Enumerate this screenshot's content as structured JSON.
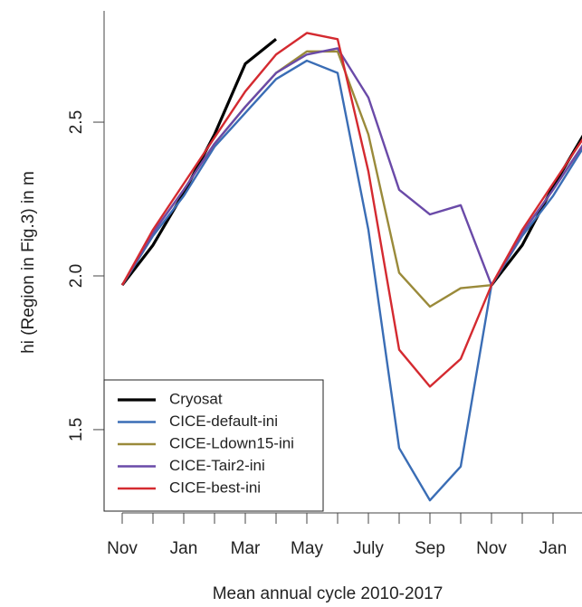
{
  "chart_data": {
    "type": "line",
    "xlabel": "Mean annual cycle 2010-2017",
    "ylabel": "hi (Region in Fig.3) in m",
    "categories": [
      "Nov",
      null,
      "Jan",
      null,
      "Mar",
      null,
      "May",
      null,
      "July",
      null,
      "Sep",
      null,
      "Nov",
      null,
      "Jan",
      null
    ],
    "ylim": [
      1.235,
      2.862
    ],
    "yticks": [
      1.5,
      {
        "value": 2,
        "label": "2.0"
      },
      2.5
    ],
    "legend": "bottom-left",
    "series": [
      {
        "name": "Cryosat",
        "color": "#000000",
        "values": [
          1.97,
          2.1,
          2.27,
          2.46,
          2.69,
          2.77,
          null,
          null,
          null,
          null,
          null,
          null,
          1.97,
          2.1,
          2.29,
          2.46
        ]
      },
      {
        "name": "CICE-default-ini",
        "color": "#3a6db5",
        "values": [
          1.97,
          2.13,
          2.26,
          2.42,
          2.53,
          2.64,
          2.7,
          2.66,
          2.15,
          1.44,
          1.27,
          1.38,
          1.97,
          2.13,
          2.26,
          2.42
        ]
      },
      {
        "name": "CICE-Ldown15-ini",
        "color": "#9a8a3a",
        "values": [
          1.97,
          2.14,
          2.28,
          2.43,
          2.55,
          2.66,
          2.73,
          2.73,
          2.46,
          2.01,
          1.9,
          1.96,
          1.97,
          2.14,
          2.28,
          2.43
        ]
      },
      {
        "name": "CICE-Tair2-ini",
        "color": "#6a4aa8",
        "values": [
          1.97,
          2.14,
          2.28,
          2.43,
          2.55,
          2.66,
          2.72,
          2.74,
          2.58,
          2.28,
          2.2,
          2.23,
          1.97,
          2.14,
          2.28,
          2.43
        ]
      },
      {
        "name": "CICE-best-ini",
        "color": "#d42a30",
        "values": [
          1.97,
          2.15,
          2.3,
          2.45,
          2.6,
          2.72,
          2.79,
          2.77,
          2.34,
          1.76,
          1.64,
          1.73,
          1.97,
          2.15,
          2.3,
          2.45
        ]
      }
    ]
  }
}
